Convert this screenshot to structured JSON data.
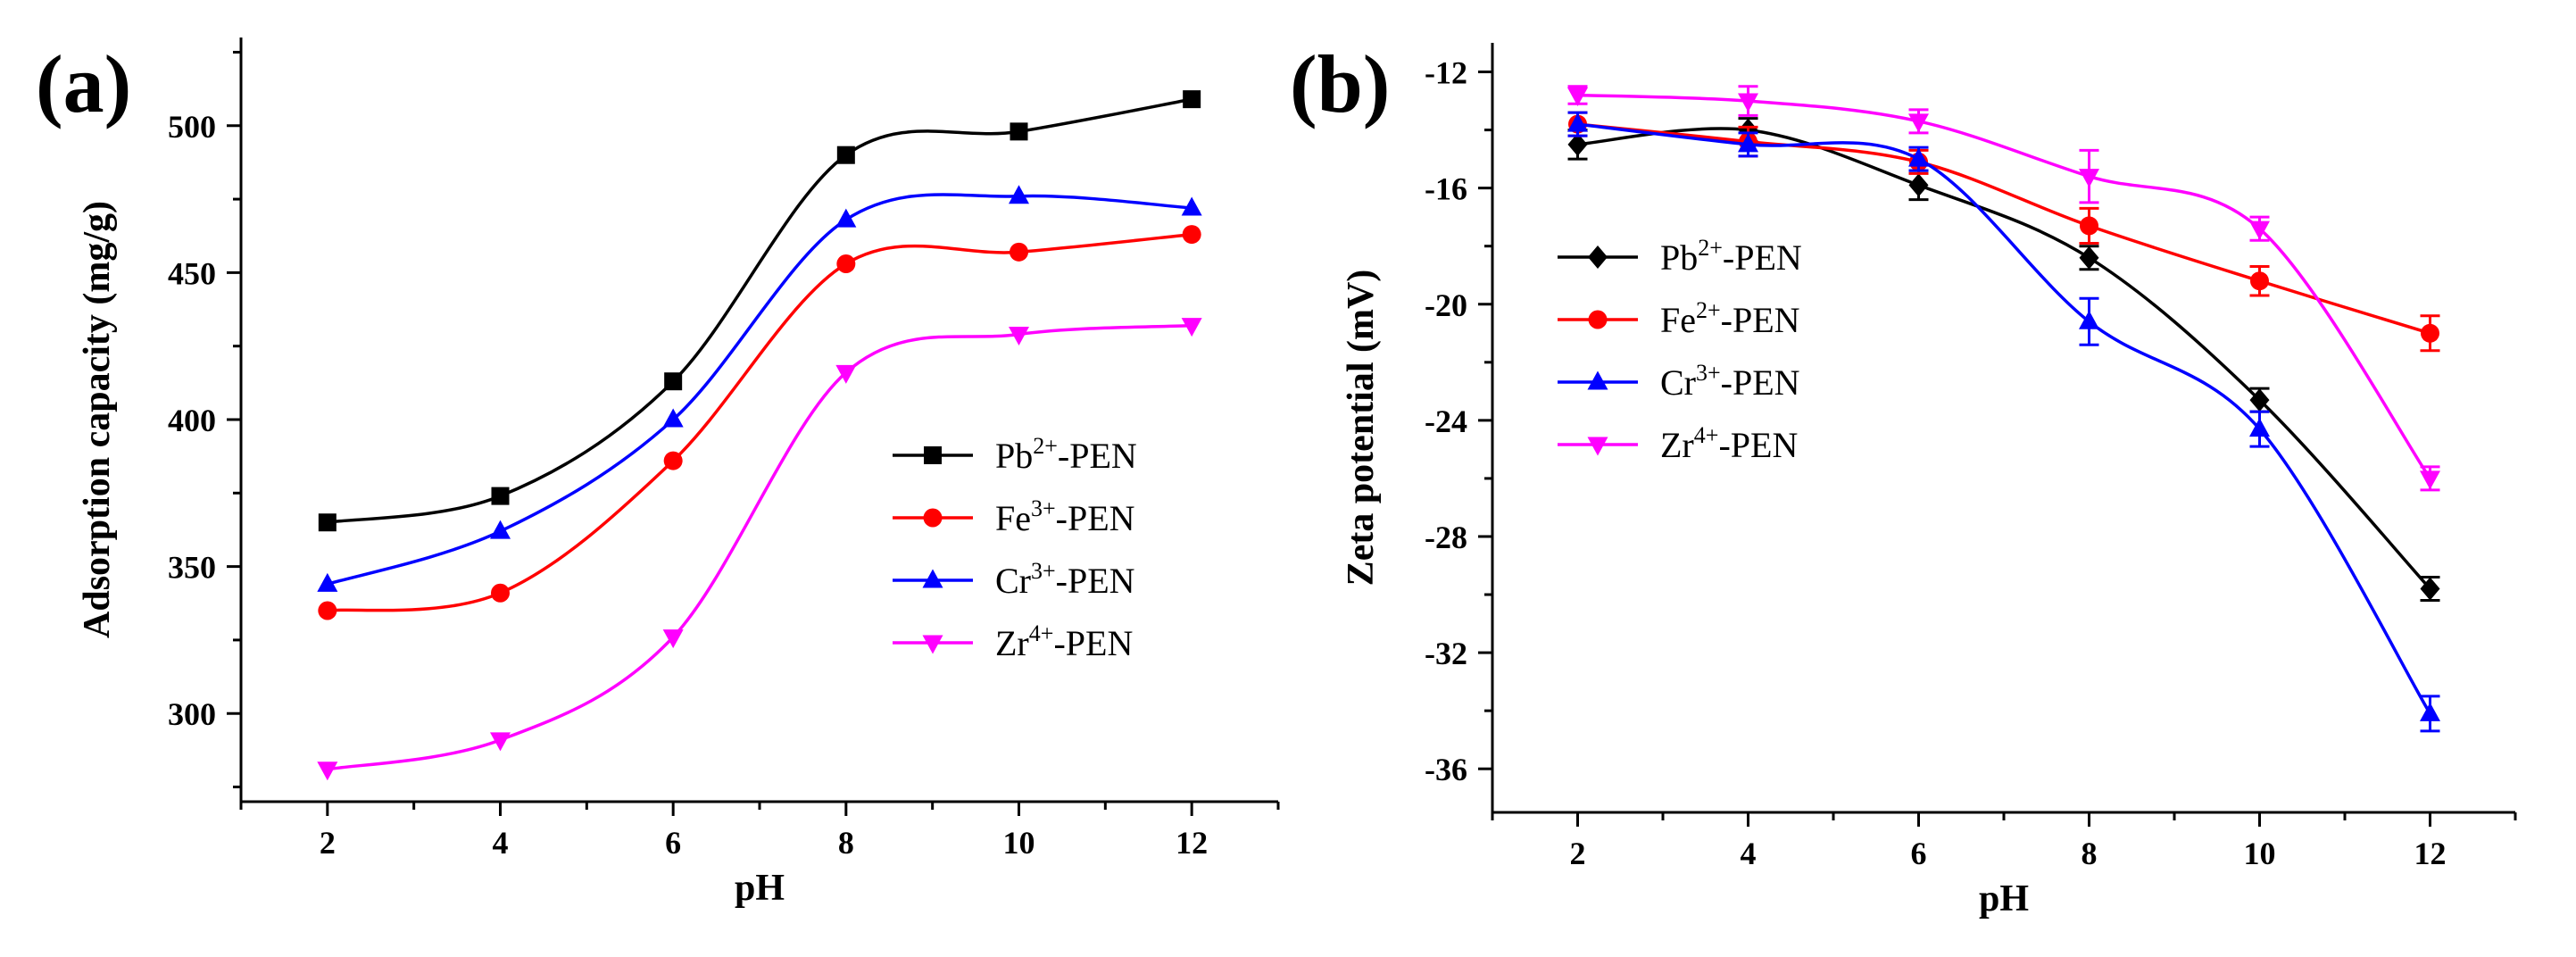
{
  "chart_data": [
    {
      "type": "scatter",
      "panel_label": "(a)",
      "xlabel": "pH",
      "ylabel": "Adsorption capacity (mg/g)",
      "xlim": [
        1,
        13
      ],
      "ylim": [
        270,
        530
      ],
      "xticks": [
        2,
        4,
        6,
        8,
        10,
        12
      ],
      "yticks": [
        300,
        350,
        400,
        450,
        500
      ],
      "x": [
        2,
        4,
        6,
        8,
        10,
        12
      ],
      "legend_position": "center-right",
      "series": [
        {
          "name": "Pb2+-PEN",
          "label_base": "Pb",
          "label_sup": "2+",
          "label_suffix": "-PEN",
          "color": "#000000",
          "marker": "square",
          "values": [
            365,
            374,
            413,
            490,
            498,
            509
          ]
        },
        {
          "name": "Fe3+-PEN",
          "label_base": "Fe",
          "label_sup": "3+",
          "label_suffix": "-PEN",
          "color": "#ff0000",
          "marker": "circle",
          "values": [
            335,
            341,
            386,
            453,
            457,
            463
          ]
        },
        {
          "name": "Cr3+-PEN",
          "label_base": "Cr",
          "label_sup": "3+",
          "label_suffix": "-PEN",
          "color": "#0000ff",
          "marker": "triangle-up",
          "values": [
            344,
            362,
            400,
            468,
            476,
            472
          ]
        },
        {
          "name": "Zr4+-PEN",
          "label_base": "Zr",
          "label_sup": "4+",
          "label_suffix": "-PEN",
          "color": "#ff00ff",
          "marker": "triangle-down",
          "values": [
            281,
            291,
            326,
            416,
            429,
            432
          ]
        }
      ]
    },
    {
      "type": "scatter",
      "panel_label": "(b)",
      "xlabel": "pH",
      "ylabel": "Zeta potential (mV)",
      "xlim": [
        1,
        13
      ],
      "ylim": [
        -37.5,
        -11
      ],
      "xticks": [
        2,
        4,
        6,
        8,
        10,
        12
      ],
      "yticks": [
        -12,
        -16,
        -20,
        -24,
        -28,
        -32,
        -36
      ],
      "x": [
        2,
        4,
        6,
        8,
        10,
        12
      ],
      "legend_position": "center-left",
      "series": [
        {
          "name": "Pb2+-PEN",
          "label_base": "Pb",
          "label_sup": "2+",
          "label_suffix": "-PEN",
          "color": "#000000",
          "marker": "diamond",
          "values": [
            -14.5,
            -14.0,
            -15.9,
            -18.4,
            -23.3,
            -29.8
          ],
          "errors": [
            0.5,
            0.4,
            0.5,
            0.4,
            0.4,
            0.4
          ]
        },
        {
          "name": "Fe2+-PEN",
          "label_base": "Fe",
          "label_sup": "2+",
          "label_suffix": "-PEN",
          "color": "#ff0000",
          "marker": "circle",
          "values": [
            -13.8,
            -14.4,
            -15.1,
            -17.3,
            -19.2,
            -21.0
          ],
          "errors": [
            0.4,
            0.5,
            0.4,
            0.6,
            0.5,
            0.6
          ]
        },
        {
          "name": "Cr3+-PEN",
          "label_base": "Cr",
          "label_sup": "3+",
          "label_suffix": "-PEN",
          "color": "#0000ff",
          "marker": "triangle-up",
          "values": [
            -13.8,
            -14.5,
            -15.0,
            -20.6,
            -24.3,
            -34.1
          ],
          "errors": [
            0.4,
            0.4,
            0.4,
            0.8,
            0.6,
            0.6
          ]
        },
        {
          "name": "Zr4+-PEN",
          "label_base": "Zr",
          "label_sup": "4+",
          "label_suffix": "-PEN",
          "color": "#ff00ff",
          "marker": "triangle-down",
          "values": [
            -12.8,
            -13.0,
            -13.7,
            -15.6,
            -17.4,
            -26.0
          ],
          "errors": [
            0.3,
            0.5,
            0.4,
            0.9,
            0.4,
            0.4
          ]
        }
      ]
    }
  ]
}
